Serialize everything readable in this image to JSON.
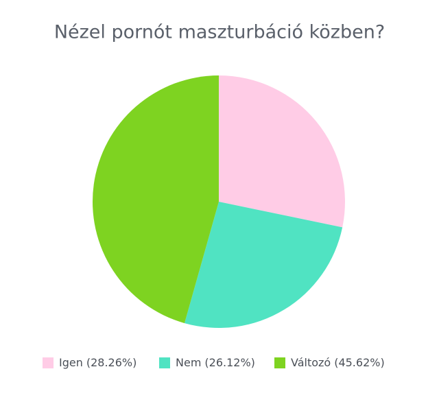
{
  "chart_data": {
    "type": "pie",
    "title": "Nézel pornót maszturbáció közben?",
    "categories": [
      "Igen",
      "Nem",
      "Változó"
    ],
    "values": [
      28.26,
      26.12,
      45.62
    ],
    "value_labels": [
      "(28.26%)",
      "(26.12%)",
      "(45.62%)"
    ],
    "colors": [
      "#ffcce6",
      "#50e3c2",
      "#7ed321"
    ],
    "legend": "bottom"
  }
}
